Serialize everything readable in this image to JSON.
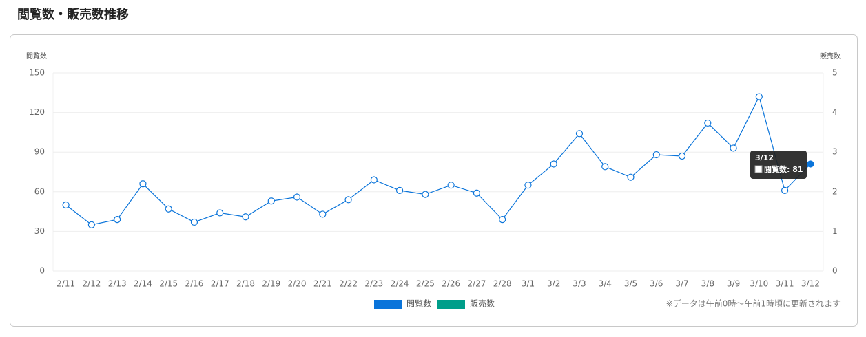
{
  "chart_data": {
    "type": "line",
    "title": "閲覧数・販売数推移",
    "y_label": "閲覧数",
    "y2_label": "販売数",
    "categories": [
      "2/11",
      "2/12",
      "2/13",
      "2/14",
      "2/15",
      "2/16",
      "2/17",
      "2/18",
      "2/19",
      "2/20",
      "2/21",
      "2/22",
      "2/23",
      "2/24",
      "2/25",
      "2/26",
      "2/27",
      "2/28",
      "3/1",
      "3/2",
      "3/3",
      "3/4",
      "3/5",
      "3/6",
      "3/7",
      "3/8",
      "3/9",
      "3/10",
      "3/11",
      "3/12"
    ],
    "series": [
      {
        "name": "閲覧数",
        "color": "#0a74da",
        "values": [
          50,
          35,
          39,
          66,
          47,
          37,
          44,
          41,
          53,
          56,
          43,
          54,
          69,
          61,
          58,
          65,
          59,
          39,
          65,
          81,
          104,
          79,
          71,
          88,
          87,
          112,
          93,
          132,
          61,
          81
        ]
      },
      {
        "name": "販売数",
        "color": "#009e8a",
        "axis": "y2",
        "values": [
          null,
          null,
          null,
          null,
          null,
          null,
          null,
          null,
          null,
          null,
          null,
          null,
          null,
          null,
          null,
          null,
          null,
          null,
          null,
          null,
          null,
          null,
          null,
          null,
          null,
          null,
          null,
          null,
          null,
          null
        ]
      }
    ],
    "ylim": [
      0,
      150
    ],
    "yticks": [
      0,
      30,
      60,
      90,
      120,
      150
    ],
    "y2lim": [
      0,
      5
    ],
    "y2ticks": [
      0,
      1,
      2,
      3,
      4,
      5
    ],
    "grid": true,
    "tooltip": {
      "title": "3/12",
      "label": "閲覧数: 81"
    },
    "note": "※データは午前0時〜午前1時頃に更新されます"
  }
}
